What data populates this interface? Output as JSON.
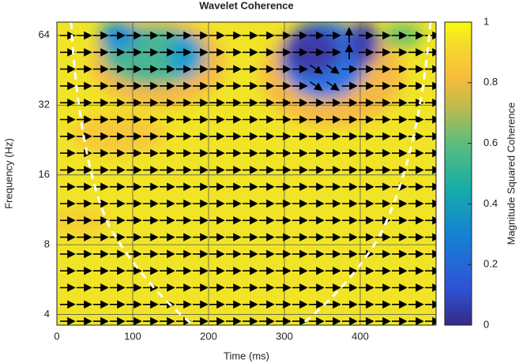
{
  "chart_data": {
    "type": "heatmap",
    "title": "Wavelet Coherence",
    "xlabel": "Time (ms)",
    "ylabel": "Frequency (Hz)",
    "xlim": [
      0,
      500
    ],
    "xticks": [
      0,
      100,
      200,
      300,
      400
    ],
    "ylim": [
      3.6,
      73
    ],
    "yticks": [
      4,
      8,
      16,
      32,
      64
    ],
    "yscale": "log",
    "grid": true,
    "colorbar": {
      "label": "Magnitude Squared Coherence",
      "lim": [
        0,
        1
      ],
      "ticks": [
        0,
        0.2,
        0.4,
        0.6,
        0.8,
        1
      ]
    }
  }
}
